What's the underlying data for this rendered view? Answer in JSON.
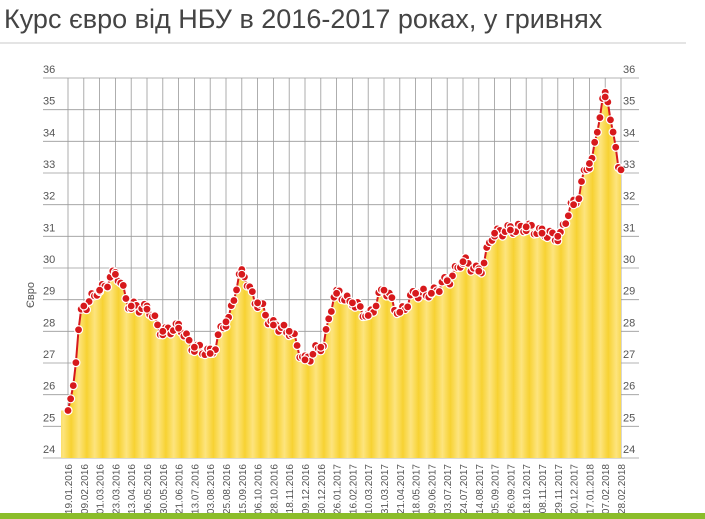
{
  "title": "Курс євро від НБУ в 2016-2017 роках, у гривнях",
  "colors": {
    "line": "#d7191c",
    "fill_light": "#fde47e",
    "fill_dark": "#f7d232",
    "bottom_bar": "#8bbd2a"
  },
  "chart_data": {
    "type": "area",
    "title": "Курс євро від НБУ в 2016-2017 роках, у гривнях",
    "xlabel": "",
    "ylabel": "Євро",
    "ylim": [
      24,
      36
    ],
    "yticks": [
      "24",
      "25",
      "26",
      "27",
      "28",
      "29",
      "30",
      "31",
      "32",
      "33",
      "34",
      "35",
      "36"
    ],
    "grid": true,
    "legend": "none",
    "x": [
      "19.01.2016",
      "09.02.2016",
      "01.03.2016",
      "23.03.2016",
      "13.04.2016",
      "06.05.2016",
      "30.05.2016",
      "21.06.2016",
      "13.07.2016",
      "03.08.2016",
      "25.08.2016",
      "15.09.2016",
      "06.10.2016",
      "28.10.2016",
      "18.11.2016",
      "09.12.2016",
      "30.12.2016",
      "26.01.2017",
      "16.02.2017",
      "10.03.2017",
      "31.03.2017",
      "21.04.2017",
      "18.05.2017",
      "09.06.2017",
      "03.07.2017",
      "24.07.2017",
      "14.08.2017",
      "05.09.2017",
      "26.09.2017",
      "18.10.2017",
      "08.11.2017",
      "29.11.2017",
      "20.12.2017",
      "17.01.2018",
      "07.02.2018",
      "28.02.2018"
    ],
    "series": [
      {
        "values": [
          25.5,
          28.8,
          29.3,
          29.8,
          28.8,
          28.7,
          28.0,
          28.1,
          27.5,
          27.3,
          28.3,
          29.8,
          28.9,
          28.2,
          28.0,
          27.1,
          27.5,
          29.2,
          28.9,
          28.5,
          29.3,
          28.6,
          29.2,
          29.2,
          29.6,
          30.2,
          29.9,
          31.1,
          31.2,
          31.3,
          31.1,
          31.0,
          32.0,
          33.3,
          35.4,
          33.1
        ]
      }
    ]
  }
}
